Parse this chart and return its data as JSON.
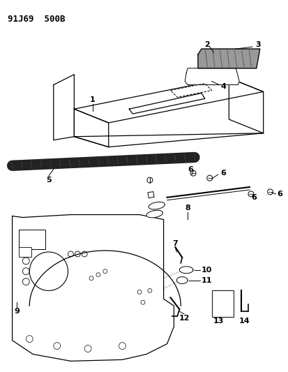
{
  "title": "91J69  500B",
  "background_color": "#ffffff",
  "line_color": "#000000",
  "dark_bar_color": "#222222",
  "fig_width": 4.14,
  "fig_height": 5.33,
  "dpi": 100
}
